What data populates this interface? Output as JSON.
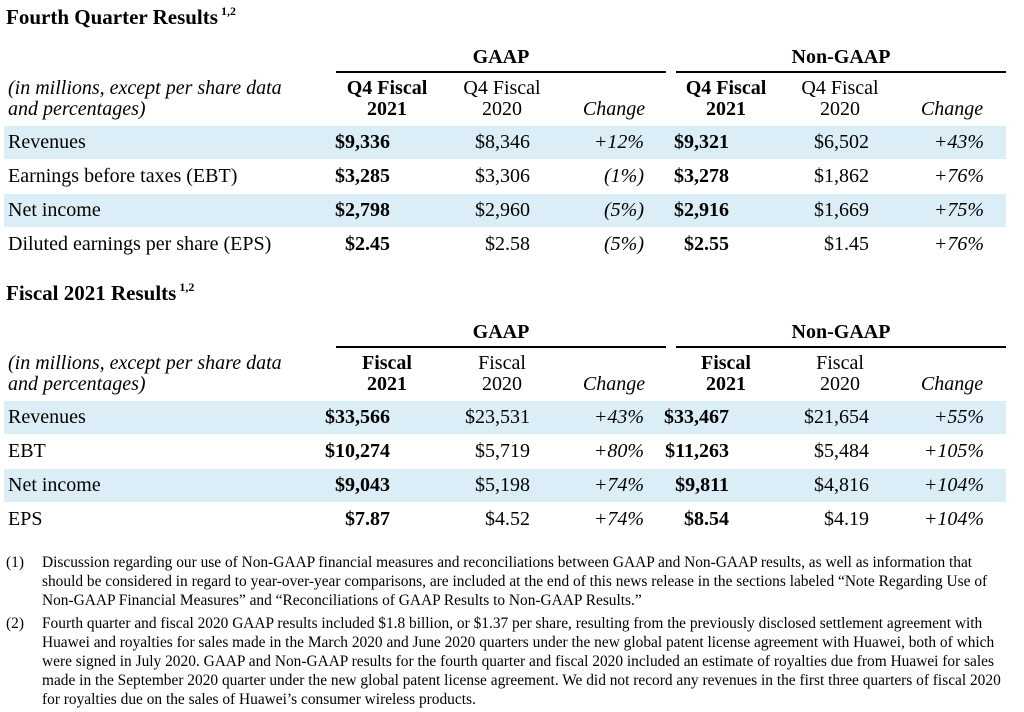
{
  "q4": {
    "title": "Fourth Quarter Results",
    "title_sup": "1,2",
    "gaap_label": "GAAP",
    "nongaap_label": "Non-GAAP",
    "note_line1": "(in millions, except per share data",
    "note_line2": "and percentages)",
    "col_head": {
      "c1_l1": "Q4 Fiscal",
      "c1_l2": "2021",
      "c2_l1": "Q4 Fiscal",
      "c2_l2": "2020",
      "c3": "Change",
      "c4_l1": "Q4 Fiscal",
      "c4_l2": "2021",
      "c5_l1": "Q4 Fiscal",
      "c5_l2": "2020",
      "c6": "Change"
    },
    "rows": [
      {
        "label": "Revenues",
        "gaap_2021": "$9,336",
        "gaap_2020": "$8,346",
        "gaap_change": "+12%",
        "ng_2021": "$9,321",
        "ng_2020": "$6,502",
        "ng_change": "+43%"
      },
      {
        "label": "Earnings before taxes (EBT)",
        "gaap_2021": "$3,285",
        "gaap_2020": "$3,306",
        "gaap_change": "(1%)",
        "ng_2021": "$3,278",
        "ng_2020": "$1,862",
        "ng_change": "+76%"
      },
      {
        "label": "Net income",
        "gaap_2021": "$2,798",
        "gaap_2020": "$2,960",
        "gaap_change": "(5%)",
        "ng_2021": "$2,916",
        "ng_2020": "$1,669",
        "ng_change": "+75%"
      },
      {
        "label": "Diluted earnings per share (EPS)",
        "gaap_2021": "$2.45",
        "gaap_2020": "$2.58",
        "gaap_change": "(5%)",
        "ng_2021": "$2.55",
        "ng_2020": "$1.45",
        "ng_change": "+76%"
      }
    ]
  },
  "fy": {
    "title": "Fiscal 2021 Results",
    "title_sup": "1,2",
    "gaap_label": "GAAP",
    "nongaap_label": "Non-GAAP",
    "note_line1": "(in millions, except per share data",
    "note_line2": "and percentages)",
    "col_head": {
      "c1_l1": "Fiscal",
      "c1_l2": "2021",
      "c2_l1": "Fiscal",
      "c2_l2": "2020",
      "c3": "Change",
      "c4_l1": "Fiscal",
      "c4_l2": "2021",
      "c5_l1": "Fiscal",
      "c5_l2": "2020",
      "c6": "Change"
    },
    "rows": [
      {
        "label": "Revenues",
        "gaap_2021": "$33,566",
        "gaap_2020": "$23,531",
        "gaap_change": "+43%",
        "ng_2021": "$33,467",
        "ng_2020": "$21,654",
        "ng_change": "+55%"
      },
      {
        "label": "EBT",
        "gaap_2021": "$10,274",
        "gaap_2020": "$5,719",
        "gaap_change": "+80%",
        "ng_2021": "$11,263",
        "ng_2020": "$5,484",
        "ng_change": "+105%"
      },
      {
        "label": "Net income",
        "gaap_2021": "$9,043",
        "gaap_2020": "$5,198",
        "gaap_change": "+74%",
        "ng_2021": "$9,811",
        "ng_2020": "$4,816",
        "ng_change": "+104%"
      },
      {
        "label": "EPS",
        "gaap_2021": "$7.87",
        "gaap_2020": "$4.52",
        "gaap_change": "+74%",
        "ng_2021": "$8.54",
        "ng_2020": "$4.19",
        "ng_change": "+104%"
      }
    ]
  },
  "footnotes": [
    {
      "num": "(1)",
      "text": "Discussion regarding our use of Non-GAAP financial measures and reconciliations between GAAP and Non-GAAP results, as well as information that should be considered in regard to year-over-year comparisons, are included at the end of this news release in the sections labeled “Note Regarding Use of Non-GAAP Financial Measures” and “Reconciliations of GAAP Results to Non-GAAP Results.”"
    },
    {
      "num": "(2)",
      "text": "Fourth quarter and fiscal 2020 GAAP results included $1.8 billion, or $1.37 per share, resulting from the previously disclosed settlement agreement with Huawei and royalties for sales made in the March 2020 and June 2020 quarters under the new global patent license agreement with Huawei, both of which were signed in July 2020.  GAAP and Non-GAAP results for the fourth quarter and fiscal 2020 included an estimate of royalties due from Huawei for sales made in the September 2020 quarter under the new global patent license agreement.  We did not record any revenues in the first three quarters of fiscal 2020 for royalties due on the sales of Huawei’s consumer wireless products."
    }
  ]
}
